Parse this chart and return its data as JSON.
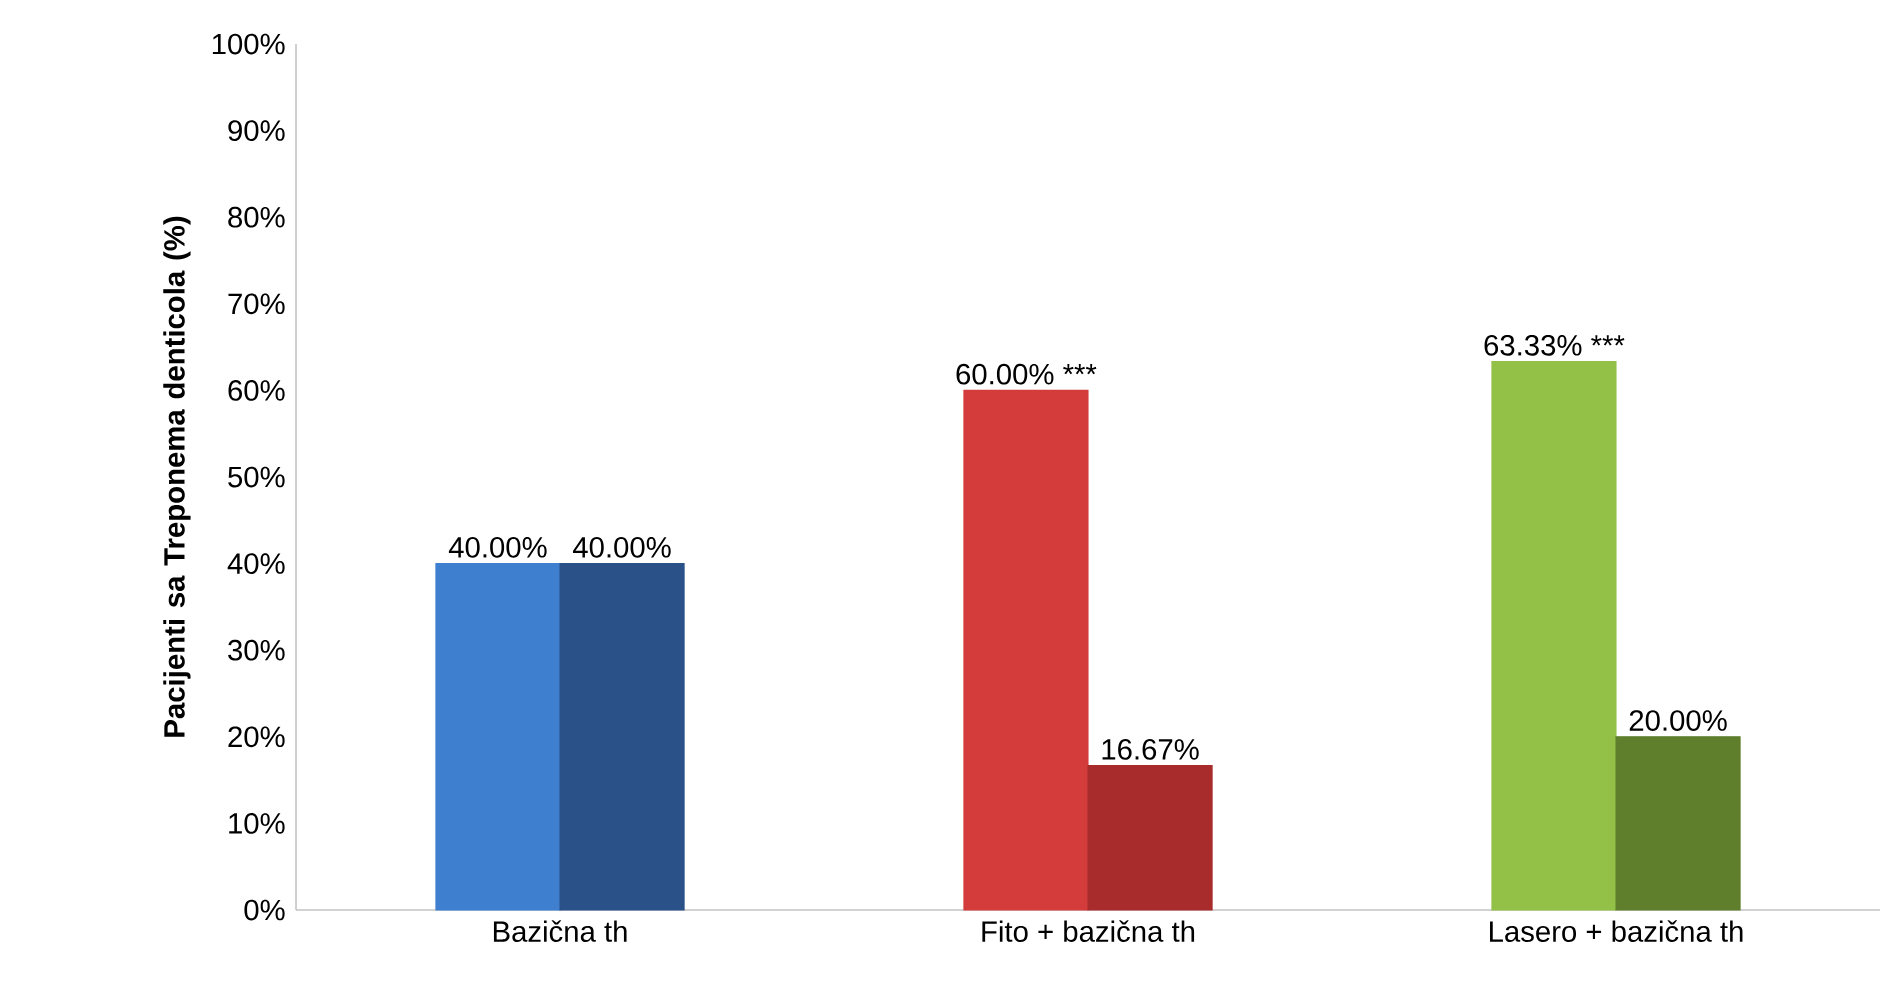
{
  "chart_data": {
    "type": "bar",
    "ylabel": "Pacijenti sa Treponema denticola (%)",
    "categories": [
      "Bazična th",
      "Fito + bazična th",
      "Lasero + bazična th"
    ],
    "series": [
      {
        "colors": [
          "#3f7fd0",
          "#d43c3c",
          "#93c047"
        ],
        "values": [
          40,
          60,
          63.33
        ],
        "value_labels": [
          "40.00%",
          "60.00% ***",
          "63.33% ***"
        ]
      },
      {
        "colors": [
          "#2b5189",
          "#a82c2c",
          "#607f2d"
        ],
        "values": [
          40,
          16.67,
          20
        ],
        "value_labels": [
          "40.00%",
          "16.67%",
          "20.00%"
        ]
      }
    ],
    "ylim": [
      0,
      100
    ],
    "yticks": [
      {
        "value": 0,
        "label": "0%"
      },
      {
        "value": 10,
        "label": "10%"
      },
      {
        "value": 20,
        "label": "20%"
      },
      {
        "value": 30,
        "label": "30%"
      },
      {
        "value": 40,
        "label": "40%"
      },
      {
        "value": 50,
        "label": "50%"
      },
      {
        "value": 60,
        "label": "60%"
      },
      {
        "value": 70,
        "label": "70%"
      },
      {
        "value": 80,
        "label": "80%"
      },
      {
        "value": 90,
        "label": "90%"
      },
      {
        "value": 100,
        "label": "100%"
      }
    ]
  }
}
